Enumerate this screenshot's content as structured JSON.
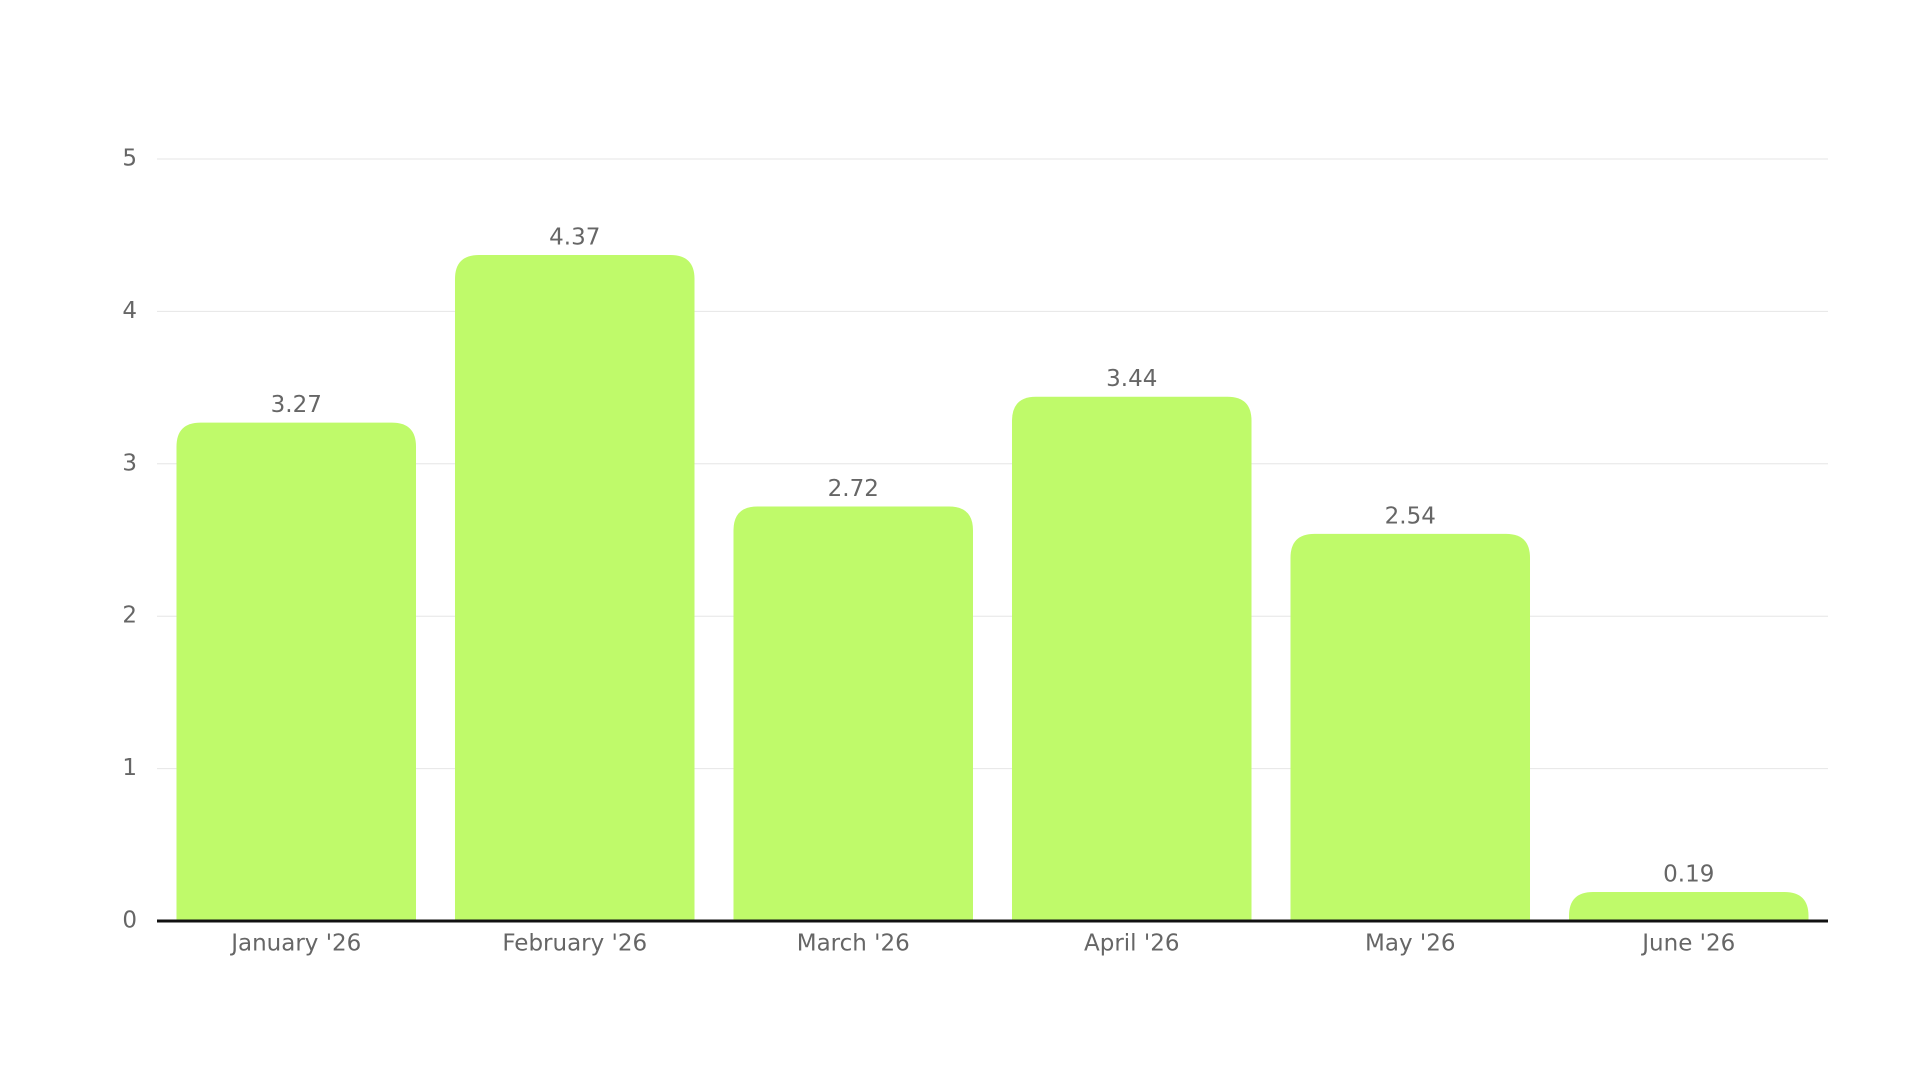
{
  "chart_data": {
    "type": "bar",
    "categories": [
      "January '26",
      "February '26",
      "March '26",
      "April '26",
      "May '26",
      "June '26"
    ],
    "values": [
      3.27,
      4.37,
      2.72,
      3.44,
      2.54,
      0.19
    ],
    "color": "#bffa6a",
    "ylim": [
      0,
      5
    ],
    "yticks": [
      0,
      1,
      2,
      3,
      4,
      5
    ],
    "grid": true
  }
}
